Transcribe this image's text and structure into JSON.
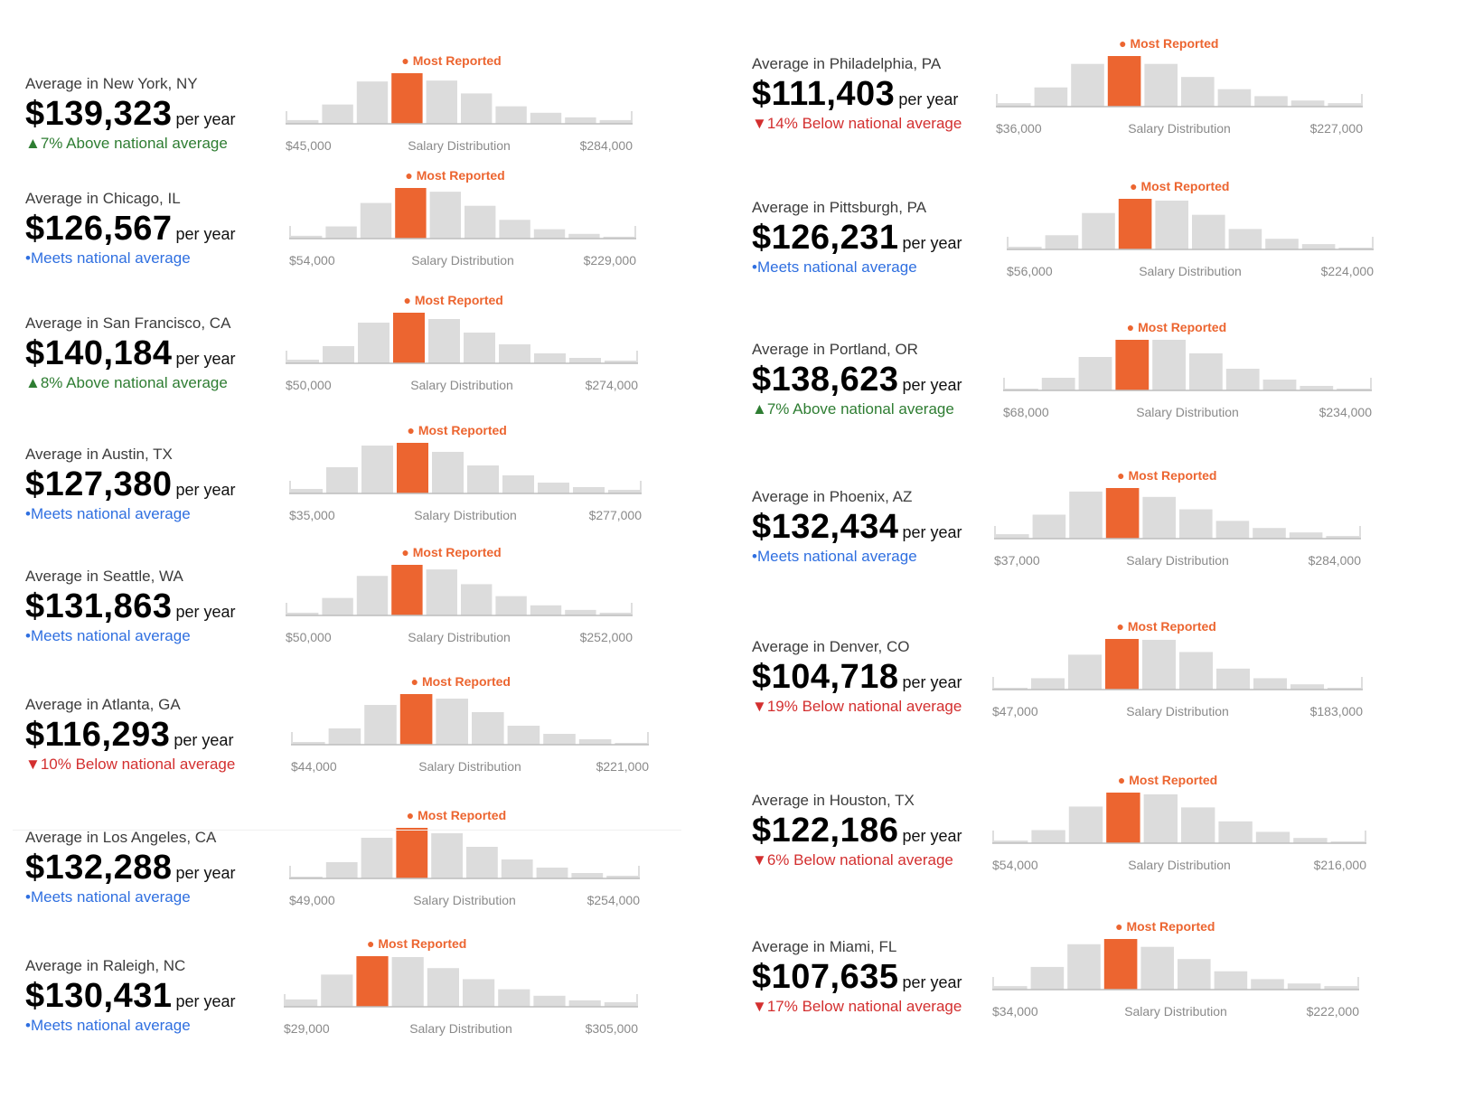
{
  "colors": {
    "bar": "#dcdcdc",
    "highlight": "#ec6530",
    "axis": "#bdbdbd",
    "tick_text": "#8a8a8a",
    "above": "#2e7d32",
    "below": "#d32f2f",
    "meets": "#2f6fe0"
  },
  "chart_data": [
    {
      "type": "bar",
      "city": "New York, NY",
      "avg_label": "Average in New York, NY",
      "amount": "$139,323",
      "per_year": "per year",
      "comparison": "▲7% Above national average",
      "comparison_kind": "above",
      "marker_label": "● Most Reported",
      "xlabel": "Salary Distribution",
      "min_label": "$45,000",
      "max_label": "$284,000",
      "values": [
        4,
        21,
        46,
        55,
        47,
        33,
        19,
        12,
        7,
        4
      ],
      "highlight_index": 3
    },
    {
      "type": "bar",
      "city": "Chicago, IL",
      "avg_label": "Average in Chicago, IL",
      "amount": "$126,567",
      "per_year": "per year",
      "comparison": "•Meets national average",
      "comparison_kind": "meets",
      "marker_label": "● Most Reported",
      "xlabel": "Salary Distribution",
      "min_label": "$54,000",
      "max_label": "$229,000",
      "values": [
        3,
        13,
        38,
        54,
        50,
        35,
        20,
        10,
        5,
        2
      ],
      "highlight_index": 3
    },
    {
      "type": "bar",
      "city": "San Francisco, CA",
      "avg_label": "Average in San Francisco, CA",
      "amount": "$140,184",
      "per_year": "per year",
      "comparison": "▲8% Above national average",
      "comparison_kind": "above",
      "marker_label": "● Most Reported",
      "xlabel": "Salary Distribution",
      "min_label": "$50,000",
      "max_label": "$274,000",
      "values": [
        4,
        19,
        45,
        56,
        49,
        34,
        21,
        11,
        6,
        3
      ],
      "highlight_index": 3
    },
    {
      "type": "bar",
      "city": "Austin, TX",
      "avg_label": "Average in Austin, TX",
      "amount": "$127,380",
      "per_year": "per year",
      "comparison": "•Meets national average",
      "comparison_kind": "meets",
      "marker_label": "● Most Reported",
      "xlabel": "Salary Distribution",
      "min_label": "$35,000",
      "max_label": "$277,000",
      "values": [
        5,
        29,
        53,
        56,
        46,
        31,
        20,
        12,
        7,
        4
      ],
      "highlight_index": 3
    },
    {
      "type": "bar",
      "city": "Seattle, WA",
      "avg_label": "Average in Seattle, WA",
      "amount": "$131,863",
      "per_year": "per year",
      "comparison": "•Meets national average",
      "comparison_kind": "meets",
      "marker_label": "● Most Reported",
      "xlabel": "Salary Distribution",
      "min_label": "$50,000",
      "max_label": "$252,000",
      "values": [
        3,
        19,
        43,
        55,
        50,
        34,
        21,
        11,
        6,
        3
      ],
      "highlight_index": 3
    },
    {
      "type": "bar",
      "city": "Atlanta, GA",
      "avg_label": "Average in Atlanta, GA",
      "amount": "$116,293",
      "per_year": "per year",
      "comparison": "▼10% Below national average",
      "comparison_kind": "below",
      "marker_label": "● Most Reported",
      "xlabel": "Salary Distribution",
      "min_label": "$44,000",
      "max_label": "$221,000",
      "values": [
        3,
        18,
        44,
        56,
        51,
        36,
        21,
        12,
        6,
        2
      ],
      "highlight_index": 3
    },
    {
      "type": "bar",
      "city": "Los Angeles, CA",
      "avg_label": "Average in Los Angeles, CA",
      "amount": "$132,288",
      "per_year": "per year",
      "comparison": "•Meets national average",
      "comparison_kind": "meets",
      "marker_label": "● Most Reported",
      "xlabel": "Salary Distribution",
      "min_label": "$49,000",
      "max_label": "$254,000",
      "values": [
        2,
        18,
        45,
        56,
        50,
        35,
        21,
        12,
        6,
        3
      ],
      "highlight_index": 3
    },
    {
      "type": "bar",
      "city": "Raleigh, NC",
      "avg_label": "Average in Raleigh, NC",
      "amount": "$130,431",
      "per_year": "per year",
      "comparison": "•Meets national average",
      "comparison_kind": "meets",
      "marker_label": "● Most Reported",
      "xlabel": "Salary Distribution",
      "min_label": "$29,000",
      "max_label": "$305,000",
      "values": [
        8,
        35,
        55,
        54,
        42,
        30,
        19,
        12,
        7,
        5
      ],
      "highlight_index": 2
    },
    {
      "type": "bar",
      "city": "Philadelphia, PA",
      "avg_label": "Average in Philadelphia, PA",
      "amount": "$111,403",
      "per_year": "per year",
      "comparison": "▼14% Below national average",
      "comparison_kind": "below",
      "marker_label": "● Most Reported",
      "xlabel": "Salary Distribution",
      "min_label": "$36,000",
      "max_label": "$227,000",
      "values": [
        4,
        22,
        49,
        58,
        49,
        34,
        20,
        12,
        7,
        4
      ],
      "highlight_index": 3
    },
    {
      "type": "bar",
      "city": "Pittsburgh, PA",
      "avg_label": "Average in Pittsburgh, PA",
      "amount": "$126,231",
      "per_year": "per year",
      "comparison": "•Meets national average",
      "comparison_kind": "meets",
      "marker_label": "● Most Reported",
      "xlabel": "Salary Distribution",
      "min_label": "$56,000",
      "max_label": "$224,000",
      "values": [
        3,
        16,
        41,
        57,
        55,
        39,
        23,
        12,
        6,
        2
      ],
      "highlight_index": 3
    },
    {
      "type": "bar",
      "city": "Portland, OR",
      "avg_label": "Average in Portland, OR",
      "amount": "$138,623",
      "per_year": "per year",
      "comparison": "▲7% Above national average",
      "comparison_kind": "above",
      "marker_label": "● Most Reported",
      "xlabel": "Salary Distribution",
      "min_label": "$68,000",
      "max_label": "$234,000",
      "values": [
        2,
        14,
        37,
        56,
        56,
        41,
        24,
        12,
        5,
        2
      ],
      "highlight_index": 3
    },
    {
      "type": "bar",
      "city": "Phoenix, AZ",
      "avg_label": "Average in Phoenix, AZ",
      "amount": "$132,434",
      "per_year": "per year",
      "comparison": "•Meets national average",
      "comparison_kind": "meets",
      "marker_label": "● Most Reported",
      "xlabel": "Salary Distribution",
      "min_label": "$37,000",
      "max_label": "$284,000",
      "values": [
        5,
        27,
        53,
        57,
        47,
        33,
        20,
        12,
        7,
        3
      ],
      "highlight_index": 3
    },
    {
      "type": "bar",
      "city": "Denver, CO",
      "avg_label": "Average in Denver, CO",
      "amount": "$104,718",
      "per_year": "per year",
      "comparison": "▼19% Below national average",
      "comparison_kind": "below",
      "marker_label": "● Most Reported",
      "xlabel": "Salary Distribution",
      "min_label": "$47,000",
      "max_label": "$183,000",
      "values": [
        2,
        13,
        40,
        58,
        57,
        43,
        24,
        13,
        6,
        2
      ],
      "highlight_index": 3
    },
    {
      "type": "bar",
      "city": "Houston, TX",
      "avg_label": "Average in Houston, TX",
      "amount": "$122,186",
      "per_year": "per year",
      "comparison": "▼6% Below national average",
      "comparison_kind": "below",
      "marker_label": "● Most Reported",
      "xlabel": "Salary Distribution",
      "min_label": "$54,000",
      "max_label": "$216,000",
      "values": [
        3,
        15,
        42,
        58,
        56,
        41,
        25,
        13,
        6,
        2
      ],
      "highlight_index": 3
    },
    {
      "type": "bar",
      "city": "Miami, FL",
      "avg_label": "Average in Miami, FL",
      "amount": "$107,635",
      "per_year": "per year",
      "comparison": "▼17% Below national average",
      "comparison_kind": "below",
      "marker_label": "● Most Reported",
      "xlabel": "Salary Distribution",
      "min_label": "$34,000",
      "max_label": "$222,000",
      "values": [
        4,
        26,
        52,
        58,
        49,
        35,
        21,
        12,
        7,
        4
      ],
      "highlight_index": 3
    }
  ]
}
